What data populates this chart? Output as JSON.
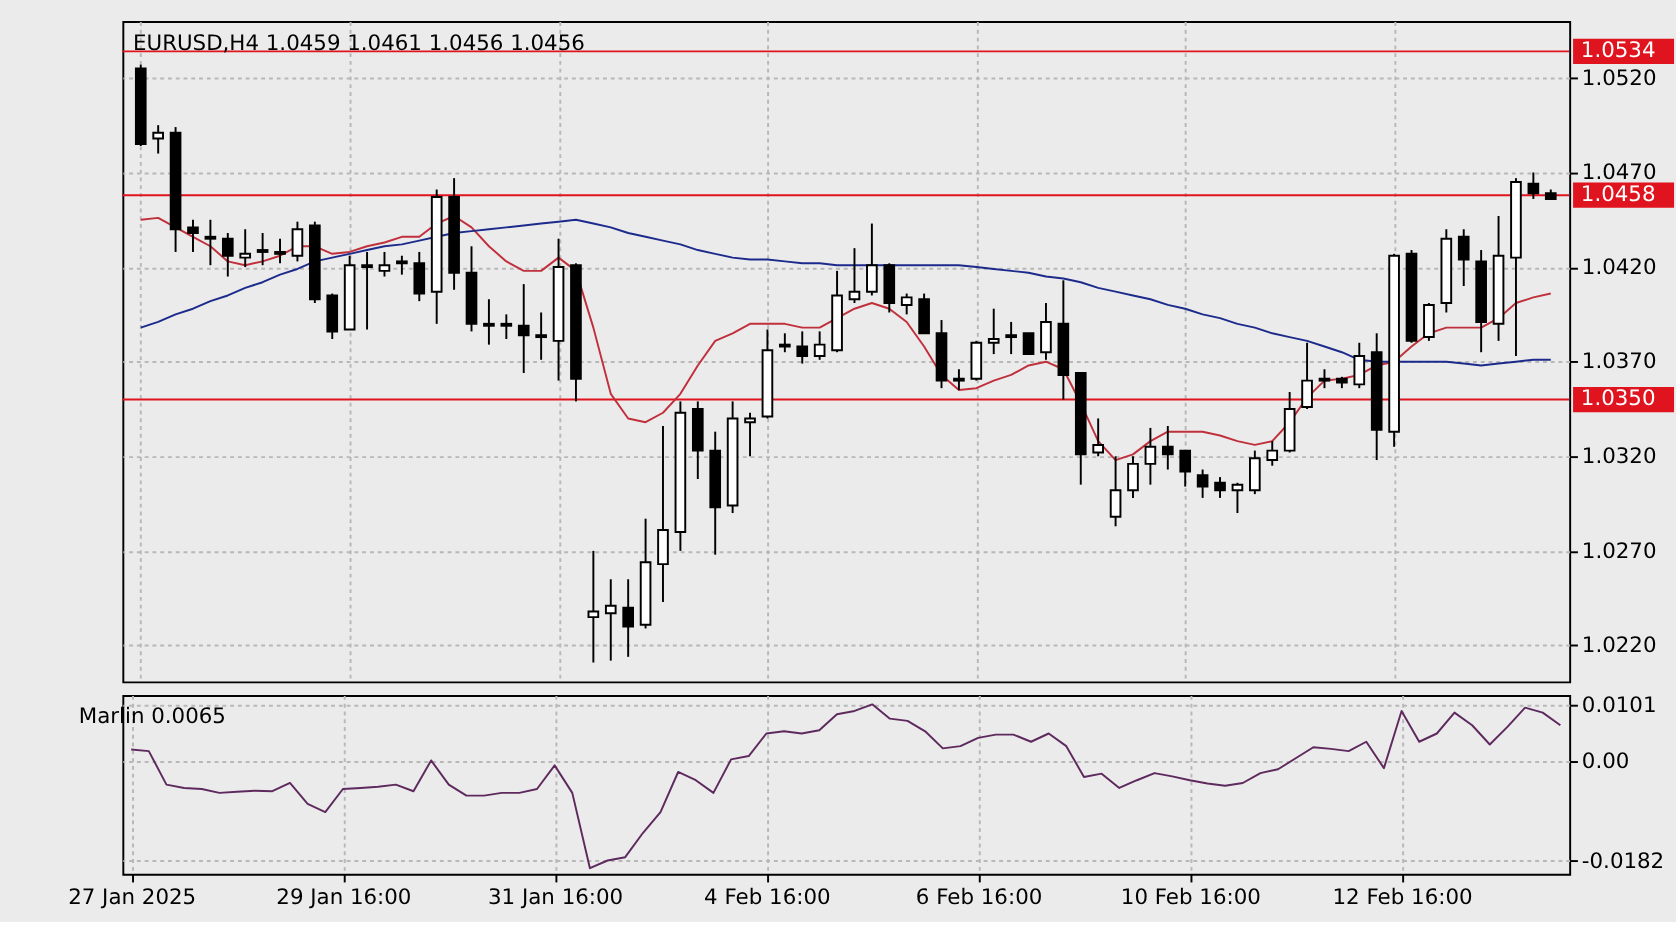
{
  "chart_data": [
    {
      "type": "candlestick",
      "title": "EURUSD,H4  1.0459 1.0461 1.0456 1.0456",
      "categories": [
        null,
        null,
        null,
        null,
        null,
        null,
        null,
        null,
        null,
        null,
        null,
        null,
        null,
        null,
        null,
        null,
        null,
        null,
        null,
        null,
        null,
        null,
        null,
        null,
        null,
        null,
        null,
        null,
        null,
        null,
        null,
        null,
        null,
        null,
        null,
        null,
        null,
        null,
        null,
        null,
        null,
        null,
        null,
        null,
        null,
        null,
        null,
        null,
        null,
        null,
        null,
        null,
        null,
        null,
        null,
        null,
        null,
        null,
        null,
        null,
        null,
        null,
        null,
        null,
        null,
        null,
        null,
        null,
        null,
        null,
        null,
        null,
        null,
        null,
        null,
        null,
        null,
        null,
        null,
        null,
        null,
        null
      ],
      "ohlc": [
        [
          1.0525,
          1.0527,
          1.0484,
          1.0485
        ],
        [
          1.0488,
          1.0495,
          1.048,
          1.0491
        ],
        [
          1.0491,
          1.0494,
          1.0428,
          1.044
        ],
        [
          1.0441,
          1.0445,
          1.0428,
          1.0438
        ],
        [
          1.0436,
          1.0445,
          1.0421,
          1.0435
        ],
        [
          1.0435,
          1.0438,
          1.0415,
          1.0426
        ],
        [
          1.0425,
          1.044,
          1.042,
          1.0427
        ],
        [
          1.0428,
          1.0438,
          1.0421,
          1.0429
        ],
        [
          1.0428,
          1.0435,
          1.0422,
          1.0427
        ],
        [
          1.0426,
          1.0444,
          1.0423,
          1.044
        ],
        [
          1.0442,
          1.0444,
          1.0401,
          1.0403
        ],
        [
          1.0405,
          1.0406,
          1.0382,
          1.0386
        ],
        [
          1.0387,
          1.0426,
          1.0387,
          1.0421
        ],
        [
          1.042,
          1.0428,
          1.0387,
          1.0421
        ],
        [
          1.0418,
          1.0428,
          1.0415,
          1.0421
        ],
        [
          1.0422,
          1.0426,
          1.0416,
          1.0423
        ],
        [
          1.0422,
          1.0428,
          1.0402,
          1.0406
        ],
        [
          1.0407,
          1.0461,
          1.039,
          1.0457
        ],
        [
          1.0457,
          1.0467,
          1.0408,
          1.0417
        ],
        [
          1.0417,
          1.0431,
          1.0386,
          1.039
        ],
        [
          1.039,
          1.0403,
          1.0379,
          1.0389
        ],
        [
          1.0389,
          1.0395,
          1.0382,
          1.039
        ],
        [
          1.0389,
          1.0411,
          1.0364,
          1.0384
        ],
        [
          1.0384,
          1.0396,
          1.0371,
          1.0383
        ],
        [
          1.0381,
          1.0435,
          1.036,
          1.042
        ],
        [
          1.0421,
          1.0422,
          1.0349,
          1.0361
        ],
        [
          1.0235,
          1.027,
          1.0211,
          1.0238
        ],
        [
          1.0237,
          1.0255,
          1.0212,
          1.0241
        ],
        [
          1.024,
          1.0255,
          1.0214,
          1.023
        ],
        [
          1.0231,
          1.0287,
          1.0229,
          1.0264
        ],
        [
          1.0263,
          1.0336,
          1.0243,
          1.0281
        ],
        [
          1.028,
          1.0349,
          1.027,
          1.0343
        ],
        [
          1.0345,
          1.0349,
          1.0308,
          1.0323
        ],
        [
          1.0323,
          1.0333,
          1.0268,
          1.0293
        ],
        [
          1.0294,
          1.0349,
          1.029,
          1.034
        ],
        [
          1.0338,
          1.0343,
          1.032,
          1.034
        ],
        [
          1.0341,
          1.0387,
          1.034,
          1.0376
        ],
        [
          1.0378,
          1.0385,
          1.0375,
          1.0379
        ],
        [
          1.0378,
          1.0386,
          1.0369,
          1.0373
        ],
        [
          1.0373,
          1.0386,
          1.0371,
          1.0379
        ],
        [
          1.0376,
          1.0418,
          1.0375,
          1.0405
        ],
        [
          1.0403,
          1.043,
          1.0401,
          1.0407
        ],
        [
          1.0407,
          1.0443,
          1.0405,
          1.0421
        ],
        [
          1.0421,
          1.0422,
          1.0396,
          1.0401
        ],
        [
          1.04,
          1.0406,
          1.0395,
          1.0404
        ],
        [
          1.0403,
          1.0406,
          1.0385,
          1.0385
        ],
        [
          1.0385,
          1.0392,
          1.0356,
          1.036
        ],
        [
          1.036,
          1.0366,
          1.0355,
          1.0361
        ],
        [
          1.0361,
          1.0381,
          1.036,
          1.038
        ],
        [
          1.038,
          1.0398,
          1.0374,
          1.0382
        ],
        [
          1.0383,
          1.0391,
          1.0374,
          1.0384
        ],
        [
          1.0385,
          1.0385,
          1.0374,
          1.0374
        ],
        [
          1.0375,
          1.0401,
          1.0371,
          1.0391
        ],
        [
          1.039,
          1.0413,
          1.035,
          1.0363
        ],
        [
          1.0364,
          1.0364,
          1.0305,
          1.0321
        ],
        [
          1.0322,
          1.034,
          1.032,
          1.0326
        ],
        [
          1.0288,
          1.032,
          1.0283,
          1.0302
        ],
        [
          1.0302,
          1.032,
          1.0298,
          1.0316
        ],
        [
          1.0316,
          1.0335,
          1.0305,
          1.0325
        ],
        [
          1.0325,
          1.0336,
          1.0313,
          1.0321
        ],
        [
          1.0323,
          1.0323,
          1.0304,
          1.0312
        ],
        [
          1.031,
          1.0313,
          1.0298,
          1.0304
        ],
        [
          1.0306,
          1.0309,
          1.0298,
          1.0302
        ],
        [
          1.0302,
          1.0306,
          1.029,
          1.0305
        ],
        [
          1.0302,
          1.0323,
          1.03,
          1.0319
        ],
        [
          1.0318,
          1.0328,
          1.0315,
          1.0323
        ],
        [
          1.0323,
          1.0354,
          1.0322,
          1.0345
        ],
        [
          1.0346,
          1.038,
          1.0345,
          1.036
        ],
        [
          1.036,
          1.0366,
          1.0356,
          1.0361
        ],
        [
          1.0361,
          1.0362,
          1.0356,
          1.0359
        ],
        [
          1.0358,
          1.038,
          1.0356,
          1.0373
        ],
        [
          1.0375,
          1.0385,
          1.0318,
          1.0334
        ],
        [
          1.0333,
          1.0427,
          1.0325,
          1.0426
        ],
        [
          1.0427,
          1.0429,
          1.038,
          1.0381
        ],
        [
          1.0383,
          1.0401,
          1.0381,
          1.04
        ],
        [
          1.0401,
          1.044,
          1.0396,
          1.0435
        ],
        [
          1.0436,
          1.044,
          1.041,
          1.0424
        ],
        [
          1.0423,
          1.0429,
          1.0375,
          1.0391
        ],
        [
          1.039,
          1.0447,
          1.0381,
          1.0426
        ],
        [
          1.0425,
          1.0467,
          1.0373,
          1.0465
        ],
        [
          1.0464,
          1.047,
          1.0456,
          1.0459
        ],
        [
          1.0459,
          1.0461,
          1.0456,
          1.0456
        ]
      ],
      "series": [
        {
          "type": "line",
          "color": "#c0303c",
          "values": [
            1.0445,
            1.0446,
            1.0441,
            1.0436,
            1.0431,
            1.0423,
            1.0421,
            1.0423,
            1.0426,
            1.0431,
            1.0431,
            1.0427,
            1.0428,
            1.0431,
            1.0433,
            1.0436,
            1.0436,
            1.0443,
            1.0447,
            1.0441,
            1.0431,
            1.0423,
            1.0418,
            1.0418,
            1.0425,
            1.0418,
            1.0388,
            1.0353,
            1.034,
            1.0338,
            1.0343,
            1.0353,
            1.0368,
            1.0381,
            1.0385,
            1.039,
            1.039,
            1.039,
            1.0388,
            1.0388,
            1.0393,
            1.0398,
            1.0401,
            1.0398,
            1.0391,
            1.0378,
            1.0363,
            1.0355,
            1.0356,
            1.036,
            1.0363,
            1.0368,
            1.037,
            1.0366,
            1.0348,
            1.0328,
            1.0318,
            1.0321,
            1.0328,
            1.0333,
            1.0333,
            1.0333,
            1.0331,
            1.0328,
            1.0326,
            1.0328,
            1.0338,
            1.0351,
            1.036,
            1.0361,
            1.0363,
            1.0368,
            1.037,
            1.0378,
            1.0385,
            1.0388,
            1.0388,
            1.0388,
            1.0393,
            1.0401,
            1.0404,
            1.0406
          ]
        },
        {
          "type": "line",
          "color": "#1c2a8c",
          "values": [
            1.0388,
            1.0391,
            1.0395,
            1.0398,
            1.0402,
            1.0405,
            1.0409,
            1.0412,
            1.0416,
            1.0419,
            1.0423,
            1.0425,
            1.0427,
            1.0429,
            1.0431,
            1.0432,
            1.0434,
            1.0436,
            1.0438,
            1.0439,
            1.044,
            1.0441,
            1.0442,
            1.0443,
            1.0444,
            1.0445,
            1.0443,
            1.0441,
            1.0438,
            1.0436,
            1.0434,
            1.0432,
            1.0429,
            1.0427,
            1.0425,
            1.0424,
            1.0424,
            1.0423,
            1.0422,
            1.0422,
            1.0421,
            1.0421,
            1.0421,
            1.0421,
            1.0421,
            1.0421,
            1.0421,
            1.0421,
            1.042,
            1.0419,
            1.0418,
            1.0417,
            1.0415,
            1.0414,
            1.0412,
            1.0409,
            1.0407,
            1.0405,
            1.0403,
            1.04,
            1.0398,
            1.0395,
            1.0393,
            1.039,
            1.0388,
            1.0385,
            1.0383,
            1.0381,
            1.0378,
            1.0375,
            1.0371,
            1.037,
            1.037,
            1.037,
            1.037,
            1.037,
            1.0369,
            1.0368,
            1.0369,
            1.037,
            1.0371,
            1.0371
          ]
        }
      ],
      "ylim": [
        1.0201,
        1.055
      ],
      "yticks": [
        {
          "value": 1.022,
          "label": "1.0220"
        },
        {
          "value": 1.027,
          "label": "1.0270"
        },
        {
          "value": 1.032,
          "label": "1.0320"
        },
        {
          "value": 1.037,
          "label": "1.0370"
        },
        {
          "value": 1.042,
          "label": "1.0420"
        },
        {
          "value": 1.047,
          "label": "1.0470"
        },
        {
          "value": 1.052,
          "label": "1.0520"
        }
      ],
      "ref_lines": [
        {
          "axis": "y",
          "value": 1.0534,
          "label": "1.0534",
          "color": "#e0141e"
        },
        {
          "axis": "y",
          "value": 1.0458,
          "label": "1.0458",
          "color": "#e0141e"
        },
        {
          "axis": "y",
          "value": 1.035,
          "label": "1.0350",
          "color": "#e0141e"
        }
      ],
      "grid": true,
      "tick_labels": "y"
    },
    {
      "type": "line",
      "title": "Marlin 0.0065",
      "categories": [
        "27 Jan 2025",
        null,
        null,
        null,
        null,
        null,
        null,
        null,
        null,
        null,
        null,
        null,
        "29 Jan 16:00",
        null,
        null,
        null,
        null,
        null,
        null,
        null,
        null,
        null,
        null,
        null,
        "31 Jan 16:00",
        null,
        null,
        null,
        null,
        null,
        null,
        null,
        null,
        null,
        null,
        null,
        "4 Feb 16:00",
        null,
        null,
        null,
        null,
        null,
        null,
        null,
        null,
        null,
        null,
        null,
        "6 Feb 16:00",
        null,
        null,
        null,
        null,
        null,
        null,
        null,
        null,
        null,
        null,
        null,
        "10 Feb 16:00",
        null,
        null,
        null,
        null,
        null,
        null,
        null,
        null,
        null,
        null,
        null,
        "12 Feb 16:00",
        null,
        null,
        null,
        null,
        null,
        null,
        null,
        null,
        null
      ],
      "series": [
        {
          "color": "#5e2a5e",
          "values": [
            0.0021,
            0.0018,
            -0.0043,
            -0.0049,
            -0.0051,
            -0.0058,
            -0.0056,
            -0.0054,
            -0.0055,
            -0.004,
            -0.0078,
            -0.0093,
            -0.0051,
            -0.0049,
            -0.0047,
            -0.0043,
            -0.0055,
            0.0001,
            -0.0043,
            -0.0063,
            -0.0063,
            -0.0058,
            -0.0058,
            -0.0051,
            -0.0008,
            -0.0058,
            -0.0195,
            -0.0181,
            -0.0175,
            -0.0131,
            -0.0093,
            -0.002,
            -0.0035,
            -0.0058,
            0.0003,
            0.0009,
            0.005,
            0.0054,
            0.005,
            0.0056,
            0.0085,
            0.0091,
            0.0103,
            0.0077,
            0.0073,
            0.0054,
            0.0023,
            0.0027,
            0.0042,
            0.0048,
            0.0048,
            0.0035,
            0.005,
            0.0027,
            -0.0029,
            -0.0023,
            -0.0049,
            -0.0035,
            -0.0022,
            -0.0028,
            -0.0035,
            -0.0041,
            -0.0045,
            -0.004,
            -0.0022,
            -0.0015,
            0.0005,
            0.0025,
            0.0022,
            0.0018,
            0.0035,
            -0.0013,
            0.0091,
            0.0035,
            0.005,
            0.0088,
            0.0065,
            0.003,
            0.0062,
            0.0097,
            0.0088,
            0.0065
          ]
        }
      ],
      "ylim": [
        -0.0205,
        0.012
      ],
      "yticks": [
        -0.0182,
        {
          "value": 0,
          "label": "0.00"
        },
        0.0101
      ],
      "grid": true
    }
  ]
}
